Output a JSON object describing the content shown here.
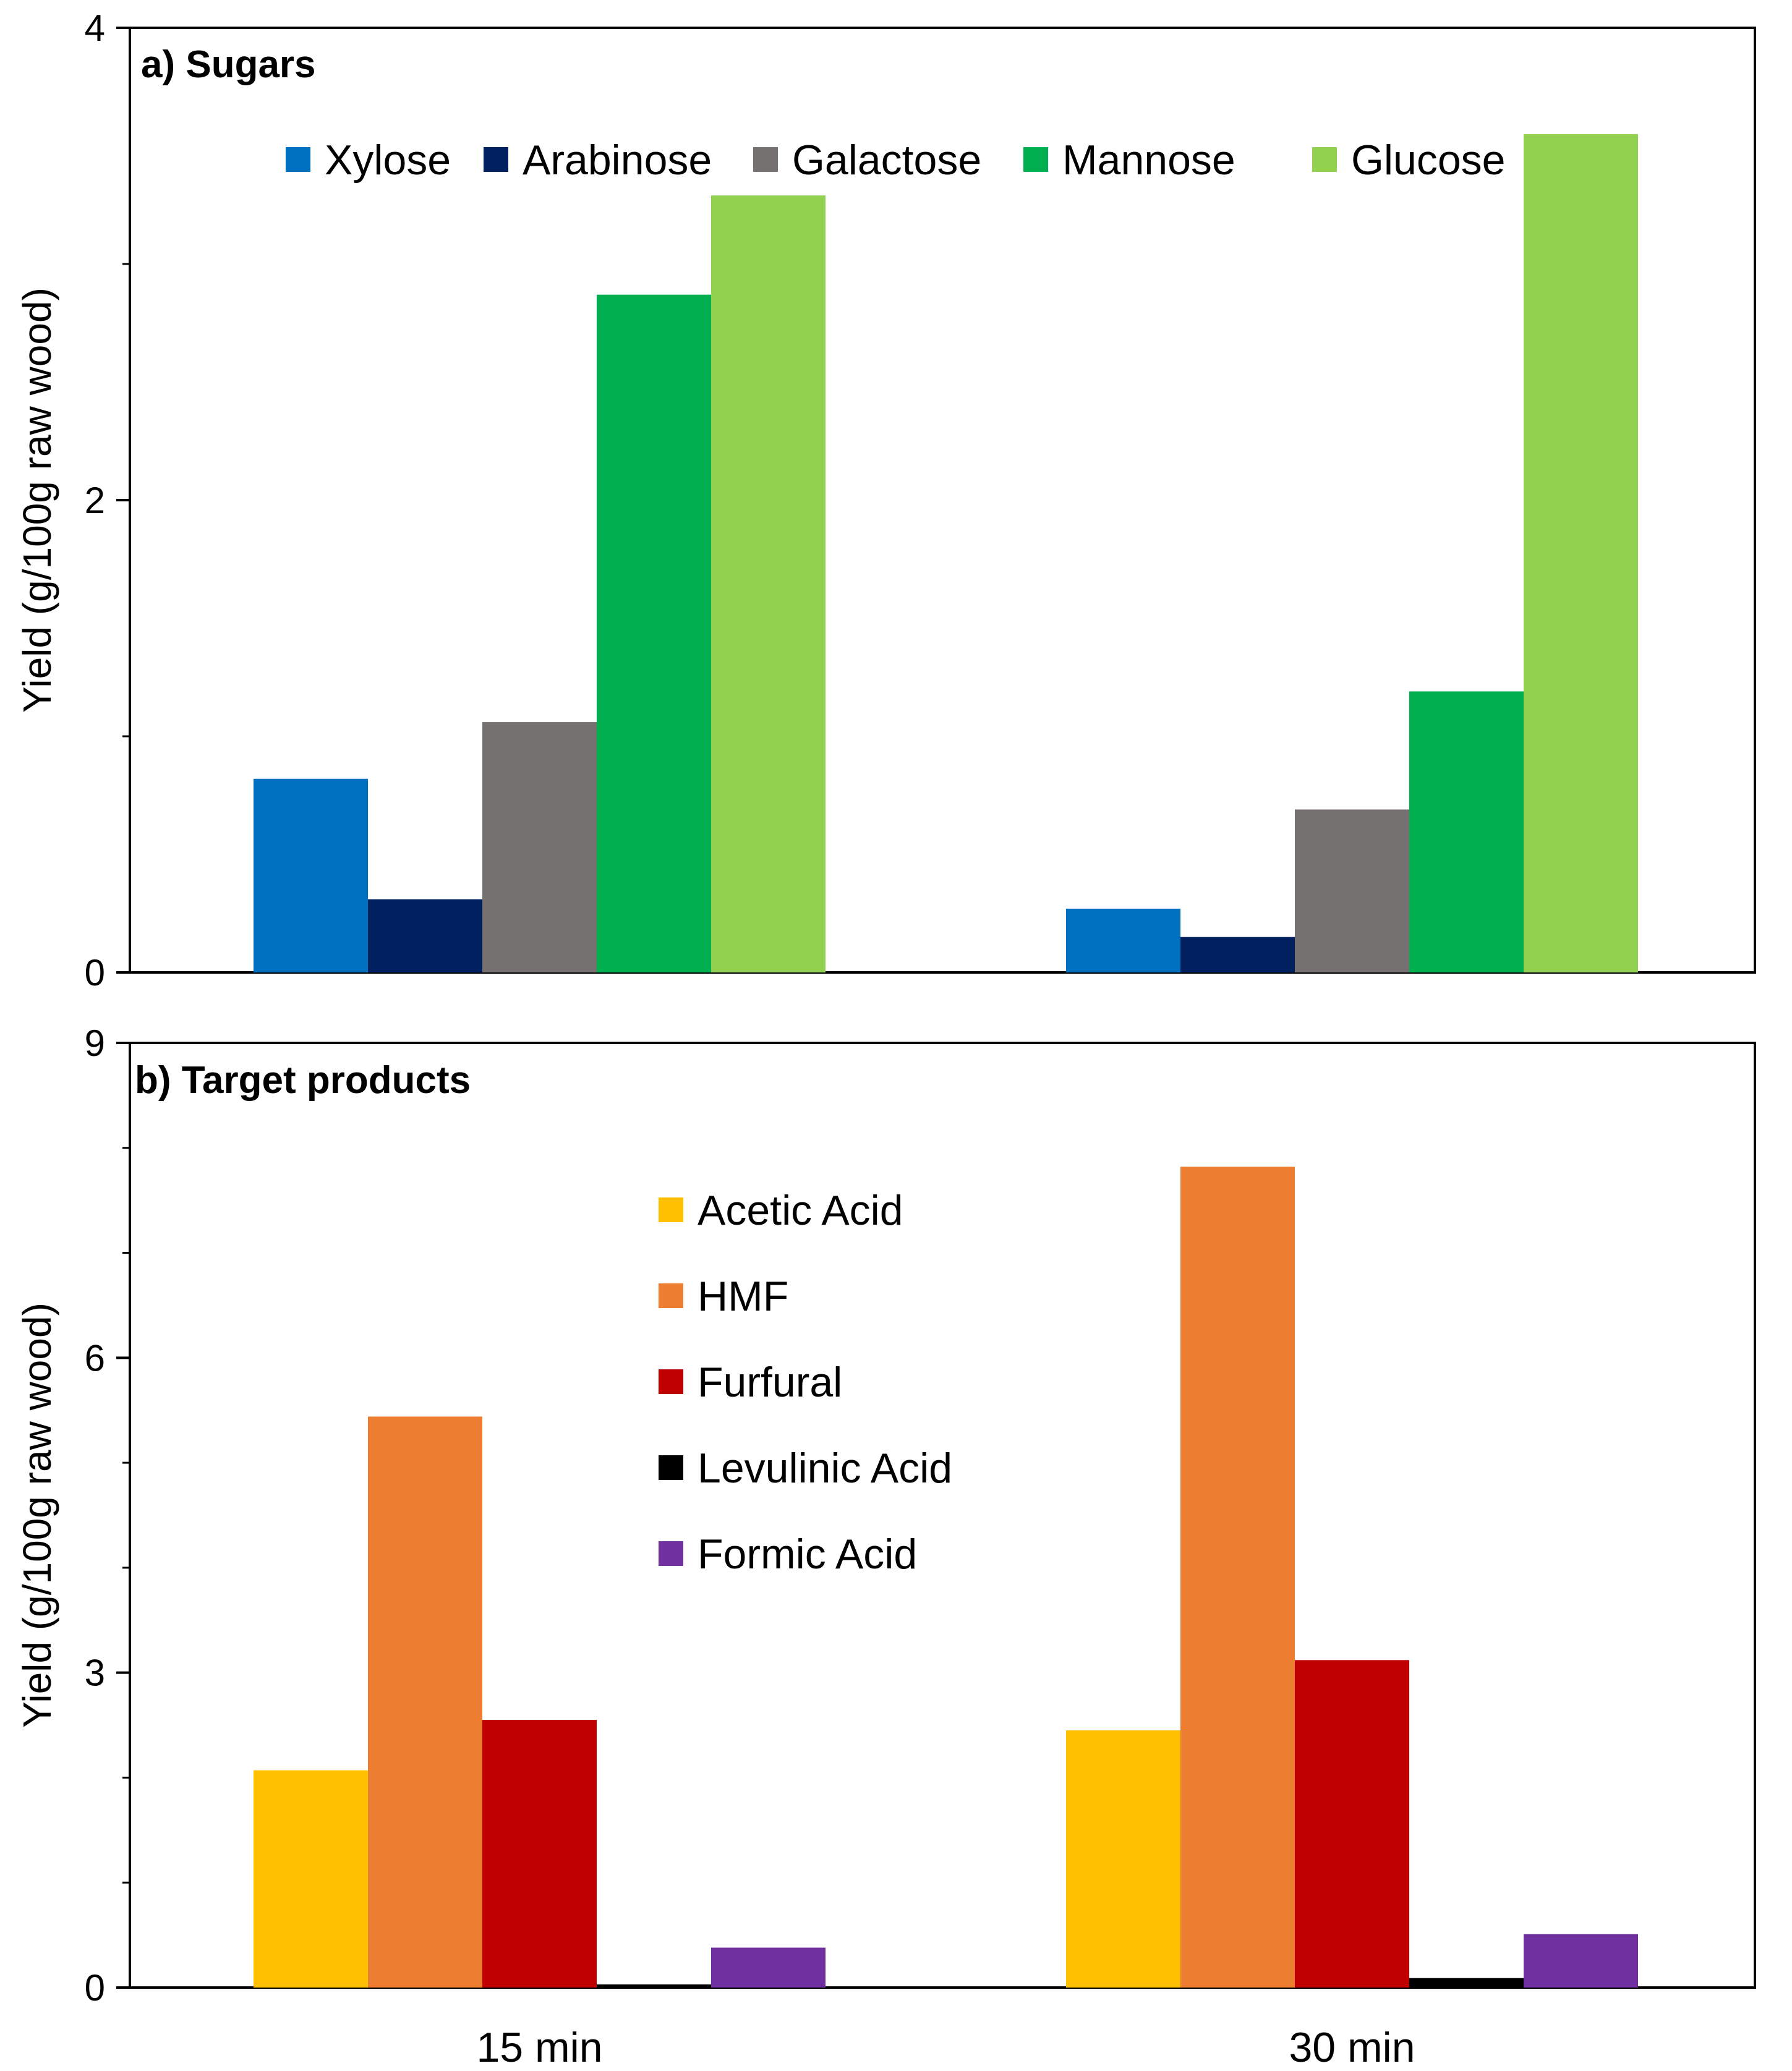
{
  "chart_data": [
    {
      "type": "bar",
      "title": "a) Sugars",
      "xlabel": "",
      "ylabel": "Yield (g/100g raw wood)",
      "categories": [
        "15 min",
        "30 min"
      ],
      "ylim": [
        0,
        4
      ],
      "yticks": [
        0,
        2,
        4
      ],
      "yticks_labels": [
        "0",
        "2",
        "4"
      ],
      "minor_tick_step": 1,
      "legend_position": "top",
      "series": [
        {
          "name": "Xylose",
          "color": "#0070C0",
          "values": [
            0.82,
            0.27
          ]
        },
        {
          "name": "Arabinose",
          "color": "#002060",
          "values": [
            0.31,
            0.15
          ]
        },
        {
          "name": "Galactose",
          "color": "#767171",
          "values": [
            1.06,
            0.69
          ]
        },
        {
          "name": "Mannose",
          "color": "#00B050",
          "values": [
            2.87,
            1.19
          ]
        },
        {
          "name": "Glucose",
          "color": "#92D050",
          "values": [
            3.29,
            3.55
          ]
        }
      ]
    },
    {
      "type": "bar",
      "title": "b) Target products",
      "xlabel": "",
      "ylabel": "Yield (g/100g raw wood)",
      "categories": [
        "15 min",
        "30 min"
      ],
      "ylim": [
        0,
        9
      ],
      "yticks": [
        0,
        3,
        6,
        9
      ],
      "yticks_labels": [
        "0",
        "3",
        "6",
        "9"
      ],
      "minor_tick_step": 1,
      "legend_position": "center",
      "series": [
        {
          "name": "Acetic Acid",
          "color": "#FFC000",
          "values": [
            2.07,
            2.45
          ]
        },
        {
          "name": "HMF",
          "color": "#ED7D31",
          "values": [
            5.44,
            7.82
          ]
        },
        {
          "name": "Furfural",
          "color": "#C00000",
          "values": [
            2.55,
            3.12
          ]
        },
        {
          "name": "Levulinic Acid",
          "color": "#000000",
          "values": [
            0.03,
            0.09
          ]
        },
        {
          "name": "Formic Acid",
          "color": "#7030A0",
          "values": [
            0.38,
            0.51
          ]
        }
      ]
    }
  ]
}
